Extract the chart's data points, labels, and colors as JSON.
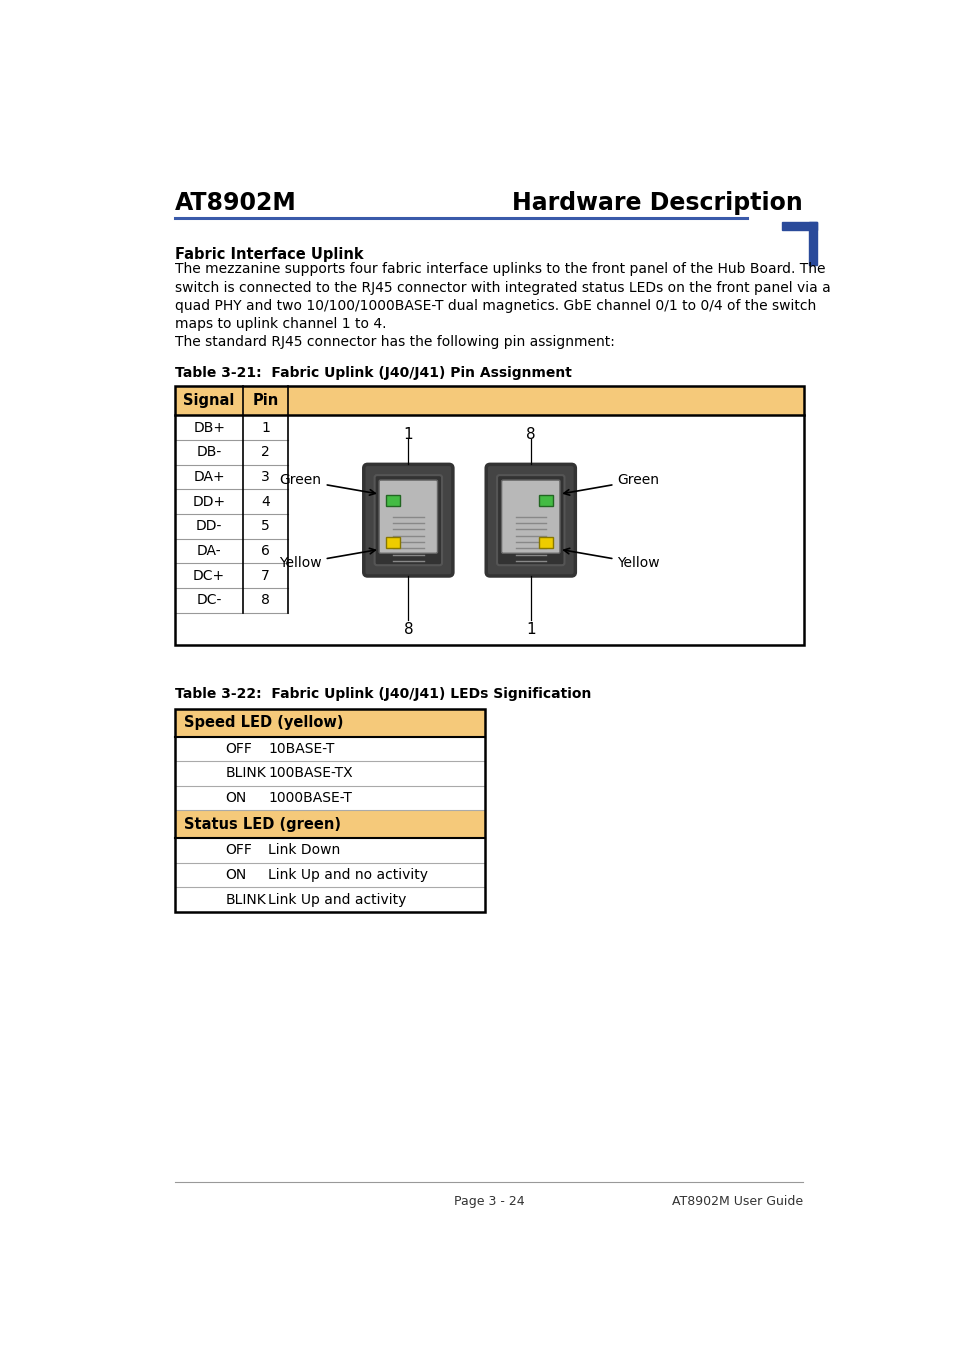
{
  "title_left": "AT8902M",
  "title_right": "Hardware Description",
  "header_line_color": "#3a5aaa",
  "corner_mark_color": "#2a4a9a",
  "section_title": "Fabric Interface Uplink",
  "body_text1": "The mezzanine supports four fabric interface uplinks to the front panel of the Hub Board. The\nswitch is connected to the RJ45 connector with integrated status LEDs on the front panel via a\nquad PHY and two 10/100/1000BASE-T dual magnetics. GbE channel 0/1 to 0/4 of the switch\nmaps to uplink channel 1 to 4.",
  "body_text2": "The standard RJ45 connector has the following pin assignment:",
  "table1_title": "Table 3-21:  Fabric Uplink (J40/J41) Pin Assignment",
  "table1_header_bg": "#f5c97a",
  "table1_header_cols": [
    "Signal",
    "Pin"
  ],
  "table1_rows": [
    [
      "DB+",
      "1"
    ],
    [
      "DB-",
      "2"
    ],
    [
      "DA+",
      "3"
    ],
    [
      "DD+",
      "4"
    ],
    [
      "DD-",
      "5"
    ],
    [
      "DA-",
      "6"
    ],
    [
      "DC+",
      "7"
    ],
    [
      "DC-",
      "8"
    ]
  ],
  "table2_title": "Table 3-22:  Fabric Uplink (J40/J41) LEDs Signification",
  "table2_header_bg": "#f5c97a",
  "table2_sections": [
    {
      "header": "Speed LED (yellow)",
      "rows": [
        [
          "OFF",
          "10BASE-T"
        ],
        [
          "BLINK",
          "100BASE-TX"
        ],
        [
          "ON",
          "1000BASE-T"
        ]
      ]
    },
    {
      "header": "Status LED (green)",
      "rows": [
        [
          "OFF",
          "Link Down"
        ],
        [
          "ON",
          "Link Up and no activity"
        ],
        [
          "BLINK",
          "Link Up and activity"
        ]
      ]
    }
  ],
  "footer_text_left": "Page 3 - 24",
  "footer_text_right": "AT8902M User Guide",
  "bg_color": "#ffffff",
  "text_color": "#000000",
  "table_border_color": "#000000",
  "green_led_color": "#44bb44",
  "yellow_led_color": "#eecc00",
  "connector_dark": "#333333",
  "connector_mid": "#666666",
  "connector_light": "#aaaaaa"
}
